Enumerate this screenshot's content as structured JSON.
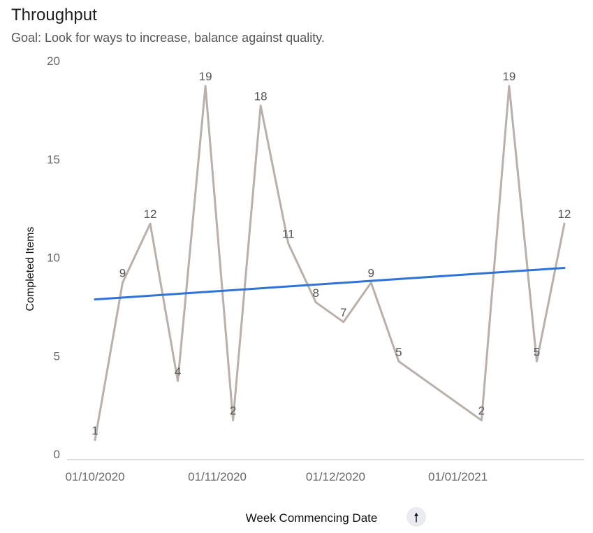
{
  "header": {
    "title": "Throughput",
    "subtitle": "Goal: Look for ways to increase, balance against quality."
  },
  "controls": {
    "sort_icon": "arrow-up-icon",
    "sort_glyph": "🠕"
  },
  "colors": {
    "series": "#b9b0ab",
    "trend": "#2f73d8",
    "axis_text": "#666666",
    "axis_line": "#dddddd",
    "button_bg": "#e9ebf0"
  },
  "chart_data": {
    "type": "line",
    "xlabel": "Week Commencing Date",
    "ylabel": "Completed Items",
    "ylim": [
      0,
      20
    ],
    "yticks": [
      0,
      5,
      10,
      15,
      20
    ],
    "xtick_labels": [
      "01/10/2020",
      "01/11/2020",
      "01/12/2020",
      "01/01/2021"
    ],
    "xtick_dates": [
      "2020-10-01",
      "2020-11-01",
      "2020-12-01",
      "2021-01-01"
    ],
    "x": [
      "2020-10-01",
      "2020-10-08",
      "2020-10-15",
      "2020-10-22",
      "2020-10-29",
      "2020-11-05",
      "2020-11-12",
      "2020-11-19",
      "2020-11-26",
      "2020-12-03",
      "2020-12-10",
      "2020-12-17",
      "2021-01-07",
      "2021-01-14",
      "2021-01-21",
      "2021-01-28"
    ],
    "series": [
      {
        "values": [
          1,
          9,
          12,
          4,
          19,
          2,
          18,
          11,
          8,
          7,
          9,
          5,
          2,
          19,
          5,
          12
        ]
      },
      {
        "type": "trendline",
        "start": 8.15,
        "end": 9.75
      }
    ],
    "grid": false,
    "legend": "none"
  }
}
